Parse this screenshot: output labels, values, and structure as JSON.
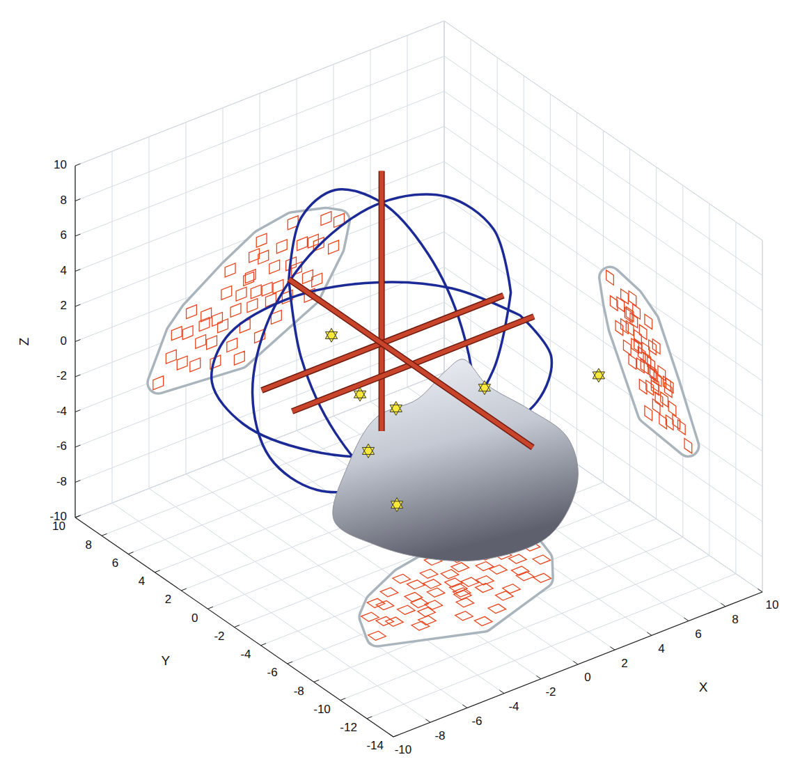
{
  "chart_data": {
    "type": "scatter3d",
    "xlabel": "X",
    "ylabel": "Y",
    "zlabel": "Z",
    "xlim": [
      -10,
      10
    ],
    "ylim": [
      -14,
      10
    ],
    "zlim": [
      -10,
      10
    ],
    "xticks": [
      -10,
      -8,
      -6,
      -4,
      -2,
      0,
      2,
      4,
      6,
      8,
      10
    ],
    "yticks": [
      -14,
      -12,
      -10,
      -8,
      -6,
      -4,
      -2,
      0,
      2,
      4,
      6,
      8,
      10
    ],
    "zticks": [
      -10,
      -8,
      -6,
      -4,
      -2,
      0,
      2,
      4,
      6,
      8,
      10
    ],
    "grid": true,
    "series": [
      {
        "type": "scatter",
        "marker": "square",
        "color": "#e8461e",
        "x": [
          -5.5,
          -4.8,
          -4.2,
          -3.9,
          -3.5,
          -3.2,
          -2.9,
          -2.6,
          -2.3,
          -2.0,
          -1.8,
          -1.5,
          -1.3,
          -1.0,
          -0.8,
          -0.6,
          -0.4,
          -0.2,
          0.0,
          0.2,
          0.4,
          0.6,
          0.8,
          1.0,
          1.2,
          1.5,
          1.7,
          2.0,
          2.3,
          2.6,
          2.9,
          3.2,
          3.6,
          4.0,
          4.3,
          -4.5,
          -3.0,
          -1.6,
          -0.5,
          0.9,
          1.8,
          -2.4,
          0.1,
          -1.1,
          2.7,
          -3.7,
          3.1,
          -0.3
        ],
        "y": [
          -6.5,
          -5.0,
          -6.0,
          -4.2,
          -7.0,
          -5.5,
          -3.8,
          -6.2,
          -4.8,
          -5.9,
          -3.2,
          -7.5,
          -5.1,
          -4.4,
          -6.6,
          -3.6,
          -5.8,
          -4.9,
          -7.9,
          -2.8,
          -5.3,
          -6.1,
          -4.0,
          -5.6,
          -3.3,
          -6.9,
          -4.6,
          -5.2,
          -3.9,
          -6.4,
          -4.3,
          -5.0,
          -3.6,
          -5.7,
          -4.5,
          -5.7,
          -6.8,
          -4.0,
          -6.0,
          -7.2,
          -2.5,
          -5.4,
          -4.2,
          -8.4,
          -5.9,
          -4.6,
          -7.0,
          -5.4
        ],
        "z": [
          -4.2,
          -3.0,
          -3.6,
          -2.0,
          -4.0,
          -2.8,
          -1.4,
          -3.1,
          -1.9,
          -2.4,
          -0.6,
          -3.7,
          -1.8,
          -1.0,
          -2.9,
          -0.3,
          -1.9,
          -1.2,
          -3.8,
          0.6,
          -1.3,
          -2.0,
          -0.2,
          -1.4,
          0.8,
          -2.2,
          -0.4,
          -0.8,
          0.5,
          -1.5,
          0.4,
          0.1,
          1.4,
          -0.4,
          1.0,
          -1.8,
          -1.9,
          0.6,
          -0.2,
          -3.1,
          1.9,
          -4.3,
          1.6,
          -4.6,
          -2.6,
          -0.9,
          -1.9,
          0.9
        ]
      },
      {
        "type": "line",
        "color": "#1c2a96",
        "x": [
          7.5,
          6.56,
          4,
          0.5,
          -3,
          -5.56,
          -6.5,
          -5.56,
          -3,
          0.5,
          4,
          6.56,
          7.5
        ],
        "y": [
          1.5,
          1.5,
          1.5,
          1.5,
          1.5,
          1.5,
          1.5,
          1.5,
          1.5,
          1.5,
          1.5,
          1.5,
          1.5
        ],
        "z": [
          0,
          4,
          6.9,
          8,
          6.9,
          4,
          0,
          -4,
          -6.9,
          -8,
          -6.9,
          -4,
          0
        ]
      },
      {
        "type": "line",
        "color": "#1c2a96",
        "x": [
          0.5,
          0.5,
          0.5,
          0.5,
          0.5,
          0.5,
          0.5,
          0.5,
          0.5,
          0.5,
          0.5,
          0.5,
          0.5
        ],
        "y": [
          8.5,
          7.56,
          5,
          1.5,
          -2,
          -4.56,
          -5.5,
          -4.56,
          -2,
          1.5,
          5,
          7.56,
          8.5
        ],
        "z": [
          0,
          4,
          6.9,
          8,
          6.9,
          4,
          0,
          -4,
          -6.9,
          -8,
          -6.9,
          -4,
          0
        ]
      },
      {
        "type": "line",
        "color": "#1c2a96",
        "x": [
          8,
          7,
          4.25,
          0.5,
          -3.25,
          -6,
          -7,
          -6,
          -3.25,
          0.5,
          4.25,
          7,
          8
        ],
        "y": [
          1.5,
          5.25,
          8,
          9,
          8,
          5.25,
          1.5,
          -2.25,
          -5,
          -6,
          -5,
          -2.25,
          1.5
        ],
        "z": [
          -1.5,
          -1.5,
          -1.5,
          -1.5,
          -1.5,
          -1.5,
          -1.5,
          -1.5,
          -1.5,
          -1.5,
          -1.5,
          -1.5,
          -1.5
        ]
      },
      {
        "type": "surface",
        "color": "#c9ced8",
        "x": [
          -3.15,
          -2.39,
          -0.88,
          1.38,
          2.89,
          3.83,
          5.15,
          7.42,
          9.49,
          7.18,
          4.24,
          0.83,
          -2.19,
          -3.04
        ],
        "y": [
          0,
          0,
          0,
          0,
          0,
          0,
          0,
          0,
          0,
          -4,
          -6,
          -6,
          -6,
          -3
        ],
        "z": [
          -7.81,
          -4.95,
          -2.88,
          -2.75,
          -1.78,
          -1.5,
          -3.51,
          -5.83,
          -8.27,
          -7.67,
          -8.54,
          -8.5,
          -7.26,
          -7.68
        ]
      },
      {
        "type": "rod",
        "color": "#c8452c",
        "x": [
          0.5,
          0.5
        ],
        "y": [
          1.5,
          1.5
        ],
        "z": [
          -5,
          9.8
        ]
      },
      {
        "type": "rod",
        "color": "#c8452c",
        "x": [
          -6,
          7.1
        ],
        "y": [
          1.5,
          1.5
        ],
        "z": [
          0,
          0
        ]
      },
      {
        "type": "rod",
        "color": "#c8452c",
        "x": [
          -6,
          7.1
        ],
        "y": [
          -0.8,
          -0.8
        ],
        "z": [
          0,
          0
        ]
      },
      {
        "type": "rod",
        "color": "#c8452c",
        "x": [
          0.5,
          0.5
        ],
        "y": [
          8.5,
          -9.9
        ],
        "z": [
          0,
          0
        ]
      },
      {
        "type": "scatter",
        "marker": "star",
        "color": "#f7e83a",
        "x": [
          -3.3,
          -1.75,
          0.2,
          5.0,
          10,
          -1.3,
          0.25
        ],
        "y": [
          0,
          0,
          0,
          0,
          -1.65,
          0,
          0
        ],
        "z": [
          2.8,
          -1.2,
          -2.8,
          -3.6,
          -4.1,
          -4.6,
          -8.3
        ]
      }
    ]
  }
}
